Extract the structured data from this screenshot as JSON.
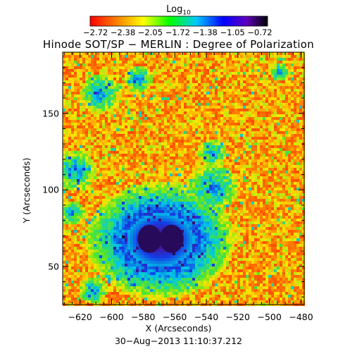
{
  "colorbar": {
    "title": "Log",
    "title_subscript": "10",
    "ticks_text": "−2.72 −2.38 −2.05 −1.72 −1.38 −1.05 −0.72",
    "min": -2.72,
    "max": -0.72
  },
  "title": "Hinode SOT/SP − MERLIN : Degree of Polarization",
  "x_axis": {
    "label": "X (Arcseconds)",
    "ticks": [
      "−620",
      "−600",
      "−580",
      "−560",
      "−540",
      "−520",
      "−500",
      "−480"
    ],
    "tick_values": [
      -620,
      -600,
      -580,
      -560,
      -540,
      -520,
      -500,
      -480
    ],
    "range": [
      -631,
      -478
    ]
  },
  "y_axis": {
    "label": "Y (Arcseconds)",
    "ticks": [
      "50",
      "100",
      "150"
    ],
    "tick_values": [
      50,
      100,
      150
    ],
    "range": [
      25,
      190
    ]
  },
  "timestamp": "30−Aug−2013 11:10:37.212",
  "colors": {
    "background": "#ffffff",
    "foreground": "#000000",
    "colormap_low": "#ff1a00",
    "colormap_mid": "#ffff00",
    "colormap_high": "#000000"
  },
  "features": {
    "sunspot_center": [
      -570,
      68
    ],
    "umbra_core_x": [
      -576,
      -562
    ]
  }
}
